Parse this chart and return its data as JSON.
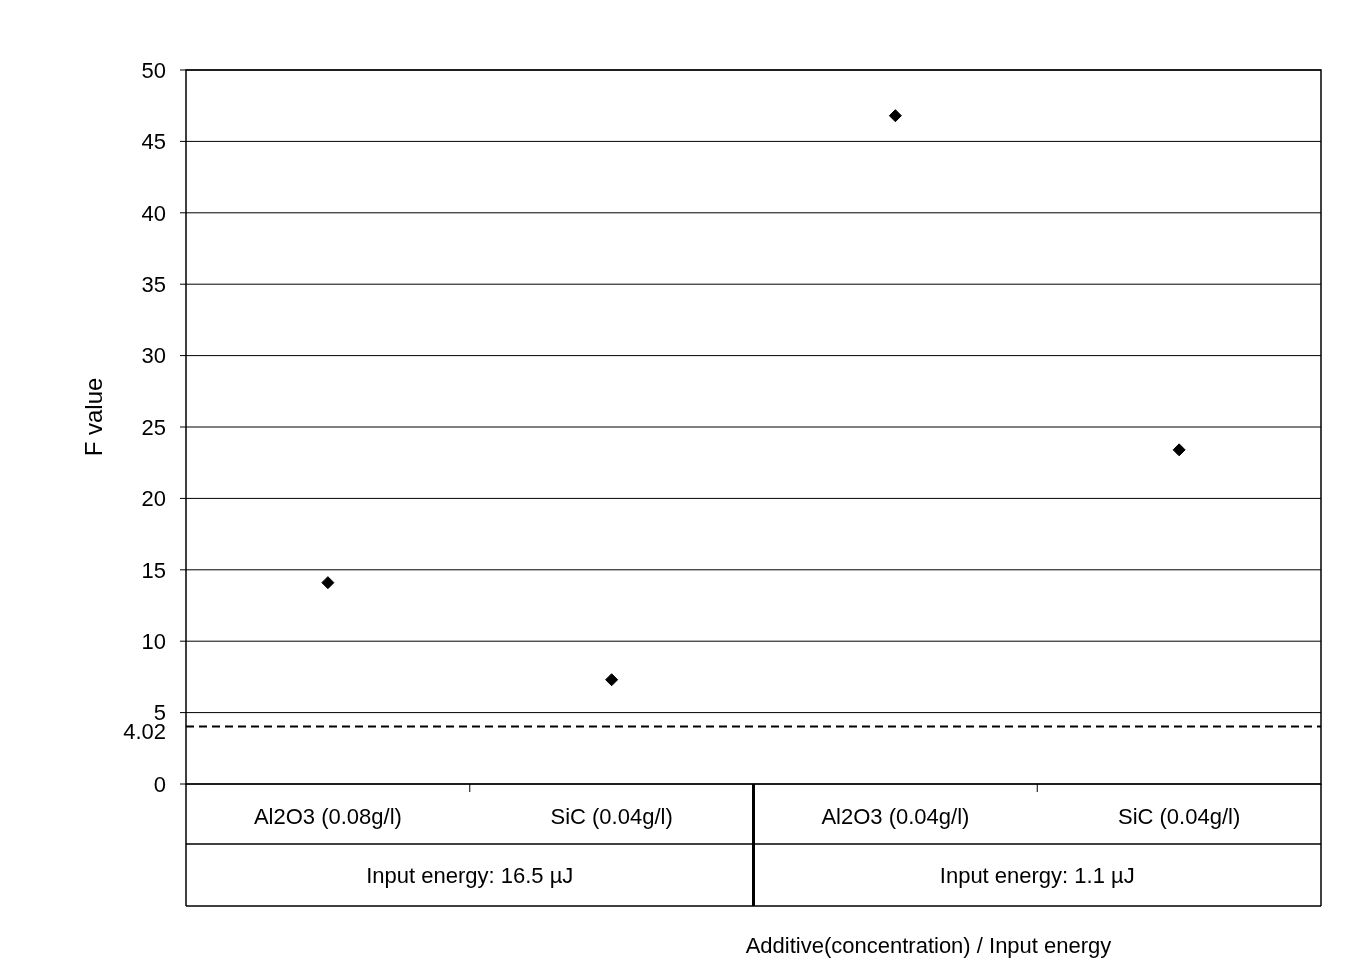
{
  "chart_data": {
    "type": "scatter",
    "xlabel": "Additive(concentration) / Input energy",
    "ylabel": "F value",
    "categories": [
      "Al2O3 (0.08g/l)",
      "SiC (0.04g/l)",
      "Al2O3 (0.04g/l)",
      "SiC (0.04g/l)"
    ],
    "series": [
      {
        "color": "#000000",
        "values": [
          14.1,
          7.3,
          46.8,
          23.4
        ]
      }
    ],
    "ylim": [
      0,
      50
    ],
    "yticks": [
      0,
      5,
      10,
      15,
      20,
      25,
      30,
      35,
      40,
      45,
      50
    ],
    "grid": "y",
    "marker": "diamond",
    "ref_lines": [
      {
        "axis": "y",
        "value": 4.02,
        "label": "4.02",
        "color": "#000000",
        "line_style": "dashed"
      }
    ],
    "annotations": [
      "Input energy: 16.5 µJ",
      "Input energy: 1.1   µJ"
    ]
  }
}
